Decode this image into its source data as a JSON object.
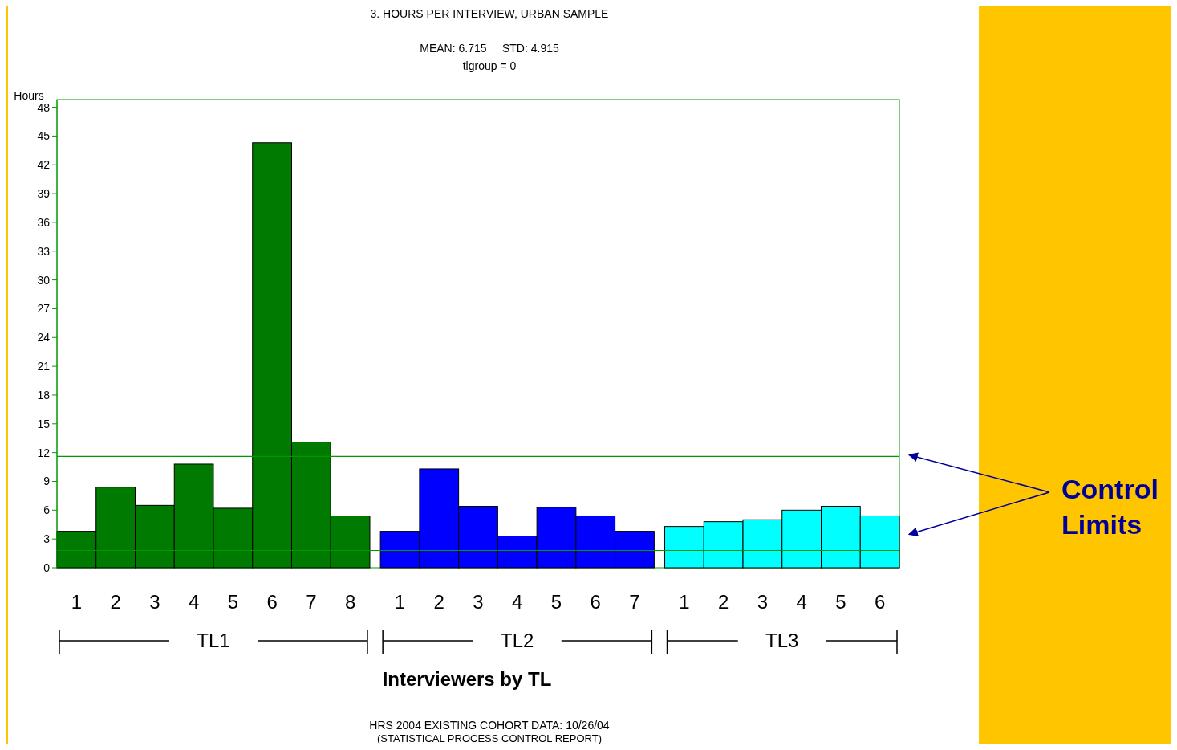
{
  "chart_data": {
    "type": "bar",
    "title": "3. HOURS PER INTERVIEW, URBAN SAMPLE",
    "subtitle": "MEAN: 6.715     STD: 4.915",
    "xlabel": "Interviewers by TL",
    "ylabel": "Hours",
    "categories": [
      "1",
      "2",
      "3",
      "4",
      "5",
      "6",
      "7",
      "8",
      "1",
      "2",
      "3",
      "4",
      "5",
      "6",
      "7",
      "1",
      "2",
      "3",
      "4",
      "5",
      "6"
    ],
    "series": [
      {
        "color": "#007a00",
        "values": [
          3.8,
          8.4,
          6.5,
          10.8,
          6.2,
          44.3,
          13.1,
          5.4,
          null,
          null,
          null,
          null,
          null,
          null,
          null,
          null,
          null,
          null,
          null,
          null,
          null
        ]
      },
      {
        "color": "#0000ff",
        "values": [
          null,
          null,
          null,
          null,
          null,
          null,
          null,
          null,
          3.8,
          10.3,
          6.4,
          3.3,
          6.3,
          5.4,
          3.8,
          null,
          null,
          null,
          null,
          null,
          null
        ]
      },
      {
        "color": "#00ffff",
        "values": [
          null,
          null,
          null,
          null,
          null,
          null,
          null,
          null,
          null,
          null,
          null,
          null,
          null,
          null,
          null,
          4.3,
          4.8,
          5.0,
          6.0,
          6.4,
          5.4
        ]
      }
    ],
    "ylim": [
      0,
      48.8
    ],
    "yticks": [
      0,
      3,
      6,
      9,
      12,
      15,
      18,
      21,
      24,
      27,
      30,
      33,
      36,
      39,
      42,
      45,
      48
    ],
    "ref_lines": [
      {
        "axis": "y",
        "value": 11.6,
        "label": null,
        "color": "#009900"
      },
      {
        "axis": "y",
        "value": 1.8,
        "label": null,
        "color": "#009900"
      }
    ],
    "annotations": [
      "tlgroup = 0",
      "Control Limits",
      "HRS 2004 EXISTING COHORT DATA: 10/26/04",
      "(STATISTICAL PROCESS CONTROL REPORT)",
      "TL1",
      "TL2",
      "TL3"
    ],
    "grid": false
  }
}
